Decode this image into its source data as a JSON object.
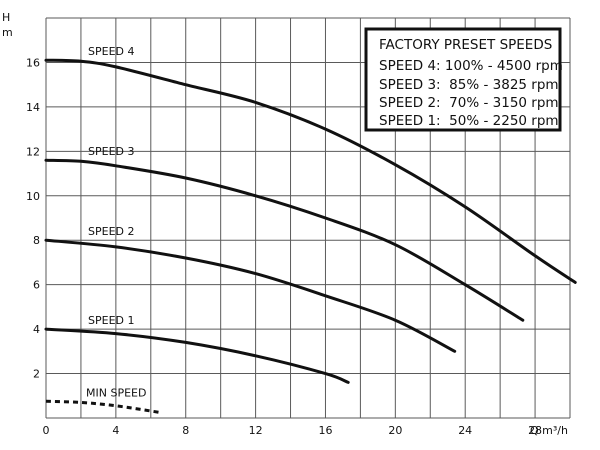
{
  "chart_data": {
    "type": "line",
    "title": "",
    "xlabel": "Q m³/h",
    "ylabel": "H m",
    "xlim": [
      0,
      30
    ],
    "ylim": [
      0,
      18
    ],
    "xticks": [
      0,
      4,
      8,
      12,
      16,
      20,
      24,
      28
    ],
    "yticks": [
      2,
      4,
      6,
      8,
      10,
      12,
      14,
      16
    ],
    "grid": true,
    "legend": {
      "placement": "top-right",
      "title": "FACTORY PRESET SPEEDS",
      "entries": [
        "SPEED 4: 100% - 4500 rpm",
        "SPEED 3:  85% - 3825 rpm",
        "SPEED 2:  70% - 3150 rpm",
        "SPEED 1:  50% - 2250 rpm"
      ]
    },
    "series": [
      {
        "name": "SPEED 4",
        "style": "solid",
        "points": [
          [
            0,
            16.1
          ],
          [
            2,
            16.05
          ],
          [
            4,
            15.8
          ],
          [
            8,
            15.0
          ],
          [
            12,
            14.2
          ],
          [
            16,
            13.0
          ],
          [
            20,
            11.4
          ],
          [
            24,
            9.5
          ],
          [
            28,
            7.3
          ],
          [
            30.3,
            6.1
          ]
        ]
      },
      {
        "name": "SPEED 3",
        "style": "solid",
        "points": [
          [
            0,
            11.6
          ],
          [
            2,
            11.55
          ],
          [
            4,
            11.35
          ],
          [
            8,
            10.8
          ],
          [
            12,
            10.0
          ],
          [
            16,
            9.0
          ],
          [
            20,
            7.8
          ],
          [
            24,
            6.0
          ],
          [
            27.3,
            4.4
          ]
        ]
      },
      {
        "name": "SPEED 2",
        "style": "solid",
        "points": [
          [
            0,
            8.0
          ],
          [
            4,
            7.7
          ],
          [
            8,
            7.2
          ],
          [
            12,
            6.5
          ],
          [
            16,
            5.5
          ],
          [
            20,
            4.4
          ],
          [
            23.4,
            3.0
          ]
        ]
      },
      {
        "name": "SPEED 1",
        "style": "solid",
        "points": [
          [
            0,
            4.0
          ],
          [
            4,
            3.8
          ],
          [
            8,
            3.4
          ],
          [
            12,
            2.8
          ],
          [
            16,
            2.0
          ],
          [
            17.3,
            1.6
          ]
        ]
      },
      {
        "name": "MIN SPEED",
        "style": "dashed",
        "points": [
          [
            0,
            0.75
          ],
          [
            2,
            0.7
          ],
          [
            4,
            0.55
          ],
          [
            6.5,
            0.25
          ]
        ]
      }
    ]
  }
}
